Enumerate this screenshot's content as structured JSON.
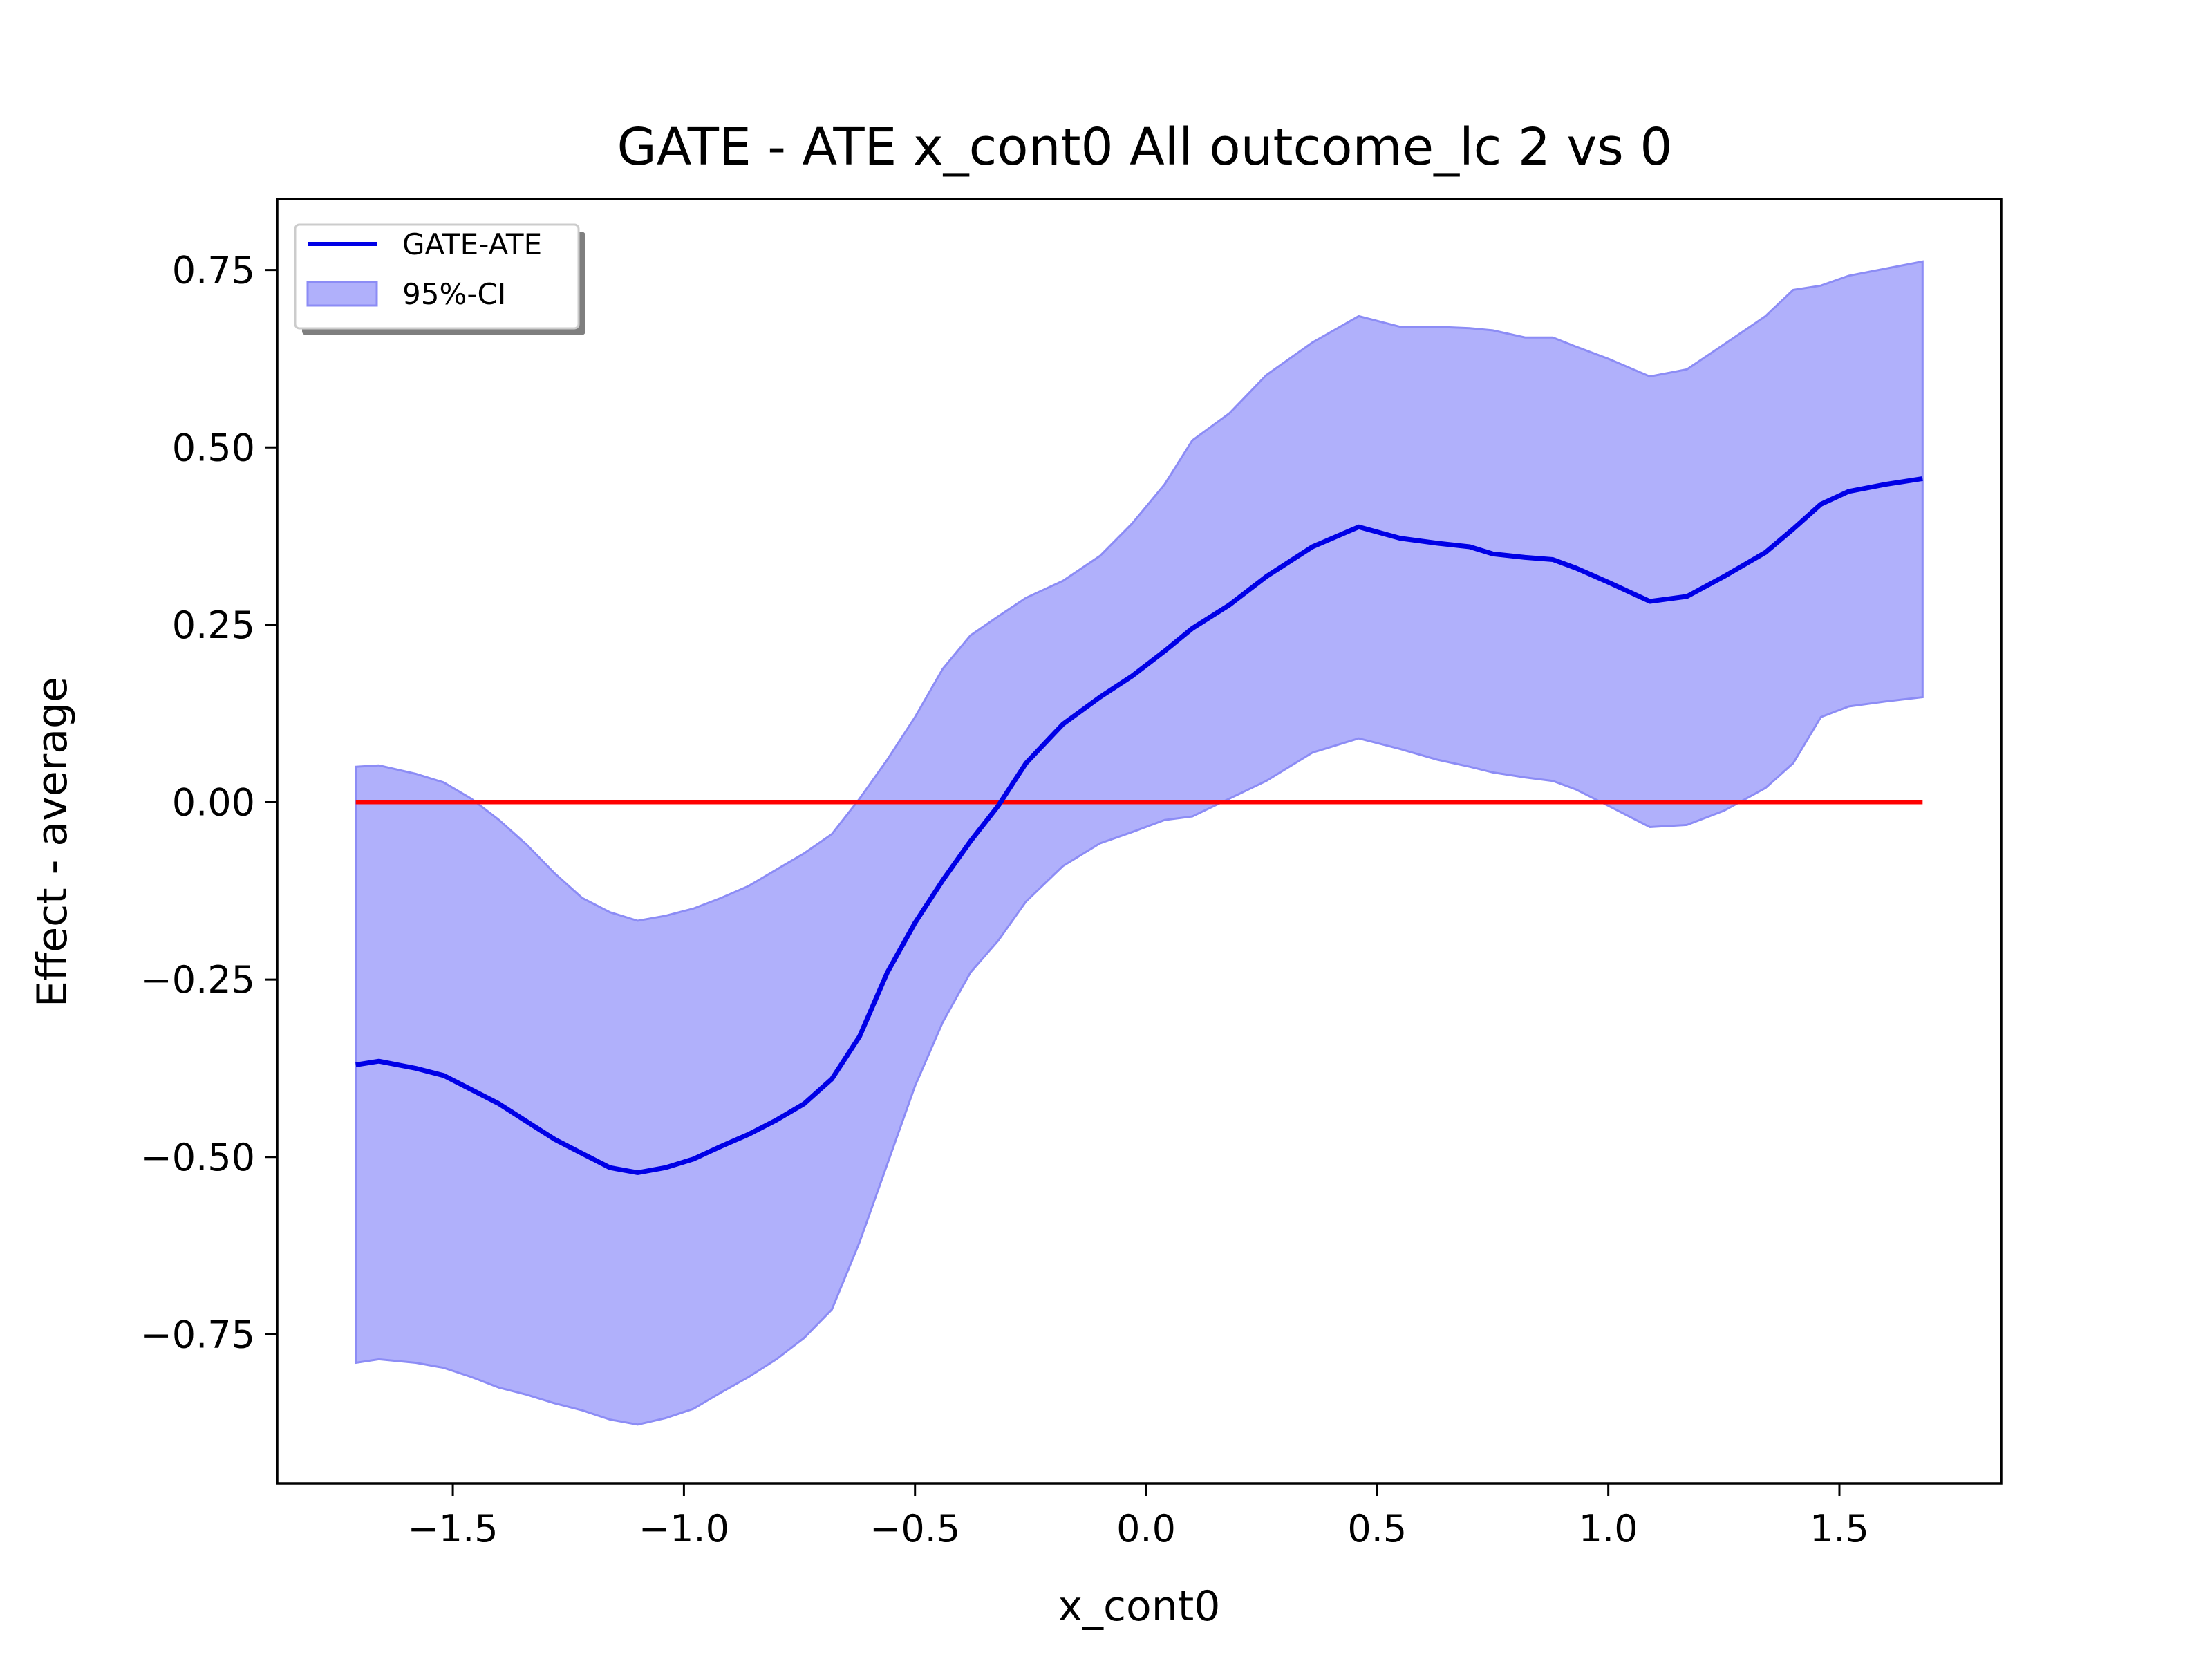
{
  "chart_data": {
    "type": "line",
    "title": "GATE - ATE x_cont0 All outcome_lc  2 vs 0",
    "xlabel": "x_cont0",
    "ylabel": "Effect - average",
    "xlim": [
      -1.88,
      1.85
    ],
    "ylim": [
      -0.96,
      0.85
    ],
    "xticks": [
      -1.5,
      -1.0,
      -0.5,
      0.0,
      0.5,
      1.0,
      1.5
    ],
    "xtick_labels": [
      "−1.5",
      "−1.0",
      "−0.5",
      "0.0",
      "0.5",
      "1.0",
      "1.5"
    ],
    "yticks": [
      0.75,
      0.5,
      0.25,
      0.0,
      -0.25,
      -0.5,
      -0.75
    ],
    "ytick_labels": [
      "0.75",
      "0.50",
      "0.25",
      "0.00",
      "−0.25",
      "−0.50",
      "−0.75"
    ],
    "grid": false,
    "legend_position": "top-left",
    "x": [
      -1.71,
      -1.66,
      -1.58,
      -1.52,
      -1.46,
      -1.4,
      -1.34,
      -1.28,
      -1.22,
      -1.16,
      -1.1,
      -1.04,
      -0.98,
      -0.92,
      -0.86,
      -0.8,
      -0.74,
      -0.68,
      -0.62,
      -0.56,
      -0.5,
      -0.44,
      -0.38,
      -0.32,
      -0.26,
      -0.18,
      -0.1,
      -0.03,
      0.04,
      0.1,
      0.18,
      0.26,
      0.36,
      0.46,
      0.55,
      0.63,
      0.7,
      0.75,
      0.82,
      0.88,
      0.93,
      1.0,
      1.09,
      1.17,
      1.25,
      1.34,
      1.4,
      1.46,
      1.52,
      1.6,
      1.68
    ],
    "series": [
      {
        "name": "GATE-ATE",
        "color": "#0000e6",
        "values": [
          -0.37,
          -0.365,
          -0.375,
          -0.385,
          -0.405,
          -0.425,
          -0.45,
          -0.475,
          -0.495,
          -0.515,
          -0.522,
          -0.515,
          -0.503,
          -0.485,
          -0.468,
          -0.448,
          -0.425,
          -0.39,
          -0.33,
          -0.24,
          -0.17,
          -0.11,
          -0.055,
          -0.005,
          0.055,
          0.11,
          0.148,
          0.178,
          0.213,
          0.245,
          0.278,
          0.318,
          0.36,
          0.388,
          0.372,
          0.365,
          0.36,
          0.35,
          0.345,
          0.342,
          0.33,
          0.31,
          0.283,
          0.29,
          0.318,
          0.352,
          0.385,
          0.42,
          0.438,
          0.448,
          0.456
        ]
      }
    ],
    "ci": {
      "name": "95%-CI",
      "color": "#b0b0fb",
      "edge_color": "#8c8cf5",
      "lower": [
        -0.79,
        -0.785,
        -0.79,
        -0.797,
        -0.81,
        -0.825,
        -0.835,
        -0.847,
        -0.857,
        -0.87,
        -0.877,
        -0.868,
        -0.855,
        -0.832,
        -0.81,
        -0.785,
        -0.755,
        -0.715,
        -0.62,
        -0.51,
        -0.4,
        -0.31,
        -0.24,
        -0.195,
        -0.14,
        -0.09,
        -0.058,
        -0.042,
        -0.025,
        -0.02,
        0.005,
        0.03,
        0.07,
        0.09,
        0.075,
        0.06,
        0.05,
        0.042,
        0.035,
        0.03,
        0.018,
        -0.005,
        -0.035,
        -0.032,
        -0.012,
        0.02,
        0.055,
        0.12,
        0.135,
        0.142,
        0.148
      ],
      "upper": [
        0.05,
        0.052,
        0.04,
        0.028,
        0.005,
        -0.025,
        -0.06,
        -0.1,
        -0.135,
        -0.155,
        -0.167,
        -0.16,
        -0.15,
        -0.135,
        -0.118,
        -0.095,
        -0.072,
        -0.045,
        0.005,
        0.06,
        0.12,
        0.188,
        0.235,
        0.262,
        0.288,
        0.312,
        0.347,
        0.393,
        0.448,
        0.51,
        0.548,
        0.602,
        0.648,
        0.685,
        0.67,
        0.67,
        0.668,
        0.665,
        0.655,
        0.655,
        0.642,
        0.625,
        0.6,
        0.61,
        0.645,
        0.685,
        0.722,
        0.728,
        0.742,
        0.752,
        0.762
      ]
    },
    "reference_line": {
      "y": 0.0,
      "color": "#ff0000"
    }
  }
}
